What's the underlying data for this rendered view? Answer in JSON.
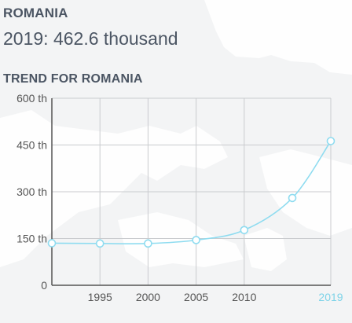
{
  "header": {
    "country": "ROMANIA",
    "year": "2019",
    "value": "462.6 thousand",
    "trend_title": "TREND FOR ROMANIA"
  },
  "colors": {
    "line": "#8fdcf0",
    "highlight": "#7dd3e8",
    "grid": "#c9cbce",
    "axis": "#555555",
    "text": "#4b5563",
    "background": "#f3f4f5",
    "map_land": "#ffffff"
  },
  "chart_data": {
    "type": "line",
    "title": "TREND FOR ROMANIA",
    "x": [
      1990,
      1995,
      2000,
      2005,
      2010,
      2015,
      2019
    ],
    "values": [
      135,
      134,
      134,
      145,
      177,
      280,
      462.6
    ],
    "xlim": [
      1990,
      2019
    ],
    "ylim": [
      0,
      600
    ],
    "x_ticks": [
      {
        "x": 1995,
        "label": "1995"
      },
      {
        "x": 2000,
        "label": "2000"
      },
      {
        "x": 2005,
        "label": "2005"
      },
      {
        "x": 2010,
        "label": "2010"
      },
      {
        "x": 2019,
        "label": "2019",
        "highlight": true
      }
    ],
    "y_ticks": [
      {
        "y": 0,
        "label": "0"
      },
      {
        "y": 150,
        "label": "150 th"
      },
      {
        "y": 300,
        "label": "300 th"
      },
      {
        "y": 450,
        "label": "450 th"
      },
      {
        "y": 600,
        "label": "600 th"
      }
    ],
    "grid": true,
    "marker": "circle-hollow"
  }
}
